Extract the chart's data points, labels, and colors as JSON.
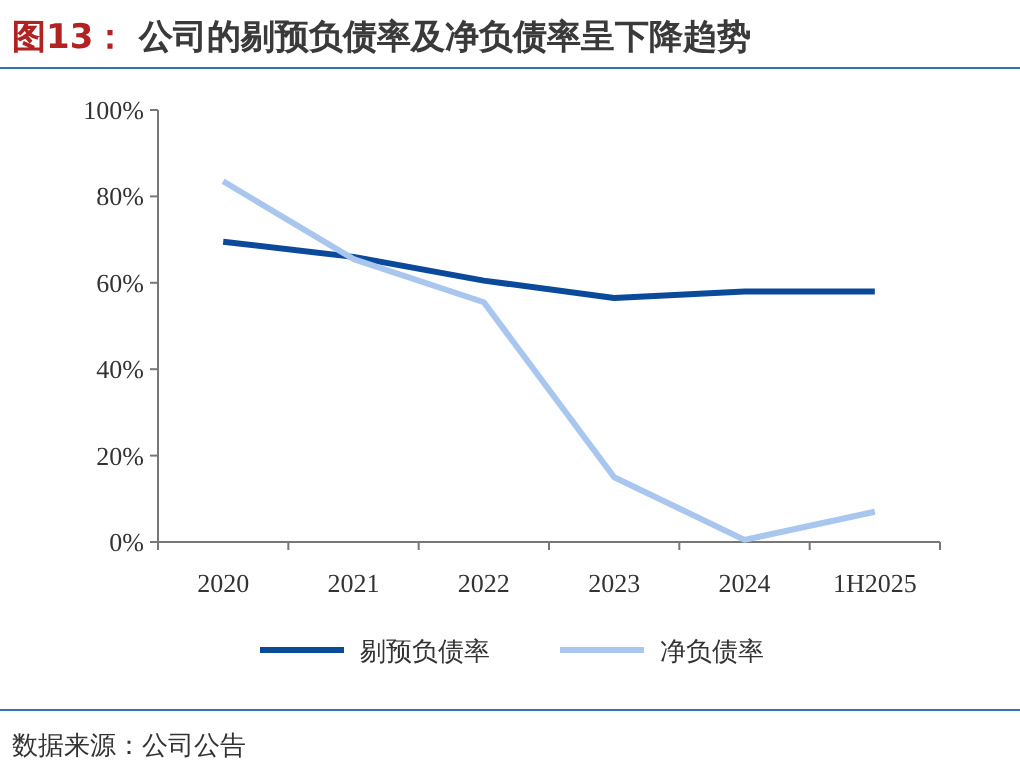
{
  "chart_data": {
    "type": "line",
    "title": "图13： 公司的剔预负债率及净负债率呈下降趋势",
    "categories": [
      "2020",
      "2021",
      "2022",
      "2023",
      "2024",
      "1H2025"
    ],
    "series": [
      {
        "name": "剔预负债率",
        "color": "#0b4a9a",
        "values": [
          69.5,
          66,
          60.5,
          56.5,
          58,
          58
        ]
      },
      {
        "name": "净负债率",
        "color": "#a9c6ee",
        "values": [
          83.5,
          65.5,
          55.5,
          15,
          0.5,
          7
        ]
      }
    ],
    "ylim": [
      0,
      100
    ],
    "yticks": [
      {
        "value": 0,
        "label": "0%"
      },
      {
        "value": 20,
        "label": "20%"
      },
      {
        "value": 40,
        "label": "40%"
      },
      {
        "value": 60,
        "label": "60%"
      },
      {
        "value": 80,
        "label": "80%"
      },
      {
        "value": 100,
        "label": "100%"
      }
    ],
    "legend": "bottom",
    "grid": false,
    "marker": "none",
    "line_style": "solid",
    "annotations": [
      "数据来源：公司公告"
    ]
  }
}
